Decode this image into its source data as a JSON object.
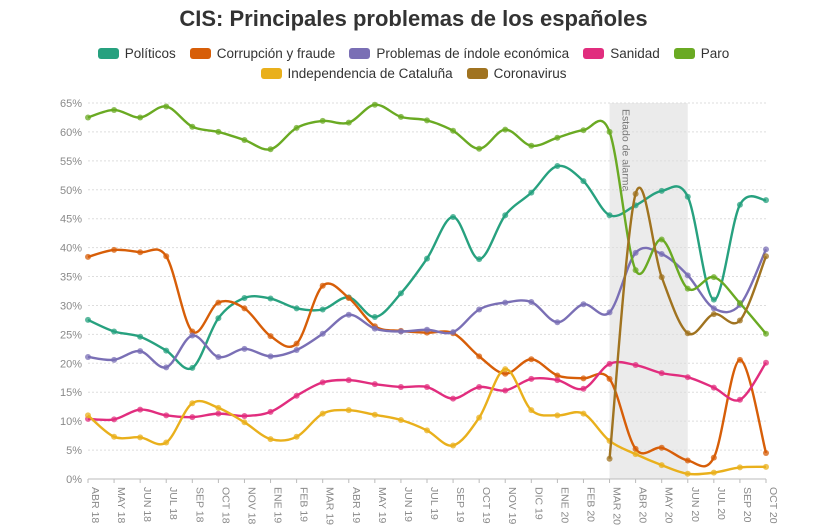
{
  "chart_data": {
    "type": "line",
    "title": "CIS: Principales problemas de los españoles",
    "xlabel": "",
    "ylabel": "",
    "ylim": [
      0,
      65
    ],
    "y_ticks": [
      "0%",
      "5%",
      "10%",
      "15%",
      "20%",
      "25%",
      "30%",
      "35%",
      "40%",
      "45%",
      "50%",
      "55%",
      "60%",
      "65%"
    ],
    "y_tick_values": [
      0,
      5,
      10,
      15,
      20,
      25,
      30,
      35,
      40,
      45,
      50,
      55,
      60,
      65
    ],
    "grid": true,
    "legend_position": "top",
    "categories": [
      "ABR 18",
      "MAY 18",
      "JUN 18",
      "JUL 18",
      "SEP 18",
      "OCT 18",
      "NOV 18",
      "ENE 19",
      "FEB 19",
      "MAR 19",
      "ABR 19",
      "MAY 19",
      "JUN 19",
      "JUL 19",
      "SEP 19",
      "OCT 19",
      "NOV 19",
      "DIC 19",
      "ENE 20",
      "FEB 20",
      "MAR 20",
      "ABR 20",
      "MAY 20",
      "JUN 20",
      "JUL 20",
      "SEP 20",
      "OCT 20"
    ],
    "shaded_region": {
      "from": "MAR 20",
      "to": "JUN 20",
      "label": "Estado de alarma"
    },
    "series": [
      {
        "name": "Políticos",
        "color": "#27a17f",
        "values": [
          27.5,
          25.5,
          24.6,
          22.2,
          19.2,
          27.8,
          31.3,
          31.2,
          29.5,
          29.3,
          31.4,
          28.0,
          32.1,
          38.1,
          45.3,
          38.0,
          45.6,
          49.5,
          54.1,
          51.5,
          45.6,
          47.3,
          49.8,
          48.8,
          31.0,
          47.4,
          48.2
        ]
      },
      {
        "name": "Corrupción y fraude",
        "color": "#d75e08",
        "values": [
          38.4,
          39.6,
          39.2,
          38.5,
          25.5,
          30.5,
          29.5,
          24.7,
          23.4,
          33.4,
          31.3,
          26.4,
          25.6,
          25.3,
          25.2,
          21.2,
          18.2,
          20.7,
          17.9,
          17.4,
          17.3,
          5.2,
          5.4,
          3.2,
          3.7,
          20.6,
          4.5
        ]
      },
      {
        "name": "Problemas de índole económica",
        "color": "#7a6fb5",
        "values": [
          21.1,
          20.6,
          22.1,
          19.3,
          24.8,
          21.1,
          22.5,
          21.2,
          22.3,
          25.1,
          28.4,
          26.0,
          25.5,
          25.8,
          25.4,
          29.3,
          30.5,
          30.6,
          27.1,
          30.2,
          28.8,
          39.1,
          38.9,
          35.2,
          29.5,
          30.1,
          39.7
        ]
      },
      {
        "name": "Sanidad",
        "color": "#e12d7e",
        "values": [
          10.4,
          10.3,
          12.0,
          11.0,
          10.7,
          11.3,
          10.9,
          11.6,
          14.4,
          16.7,
          17.1,
          16.4,
          15.9,
          15.9,
          13.9,
          15.9,
          15.3,
          17.3,
          17.1,
          15.6,
          19.9,
          19.7,
          18.3,
          17.6,
          15.8,
          13.7,
          20.1
        ]
      },
      {
        "name": "Paro",
        "color": "#6aaa23",
        "values": [
          62.5,
          63.8,
          62.5,
          64.4,
          60.9,
          60.0,
          58.6,
          57.0,
          60.7,
          61.9,
          61.6,
          64.7,
          62.6,
          62.0,
          60.2,
          57.1,
          60.4,
          57.6,
          59.0,
          60.3,
          60.0,
          36.1,
          41.4,
          32.9,
          34.9,
          30.4,
          25.1
        ]
      },
      {
        "name": "Independencia de Cataluña",
        "color": "#e9b01c",
        "values": [
          11.0,
          7.3,
          7.2,
          6.3,
          13.1,
          12.3,
          9.8,
          6.9,
          7.3,
          11.3,
          11.9,
          11.1,
          10.2,
          8.4,
          5.8,
          10.6,
          19.0,
          11.9,
          11.0,
          11.3,
          6.6,
          4.3,
          2.4,
          0.9,
          1.1,
          2.0,
          2.1
        ]
      },
      {
        "name": "Coronavirus",
        "color": "#a07320",
        "start_index": 20,
        "values": [
          null,
          null,
          null,
          null,
          null,
          null,
          null,
          null,
          null,
          null,
          null,
          null,
          null,
          null,
          null,
          null,
          null,
          null,
          null,
          null,
          3.5,
          49.3,
          34.9,
          25.2,
          28.5,
          27.4,
          38.5
        ]
      }
    ]
  },
  "legend": {
    "row1": [
      "Políticos",
      "Corrupción y fraude",
      "Problemas de índole económica",
      "Sanidad",
      "Paro"
    ],
    "row2": [
      "Independencia de Cataluña",
      "Coronavirus"
    ]
  }
}
